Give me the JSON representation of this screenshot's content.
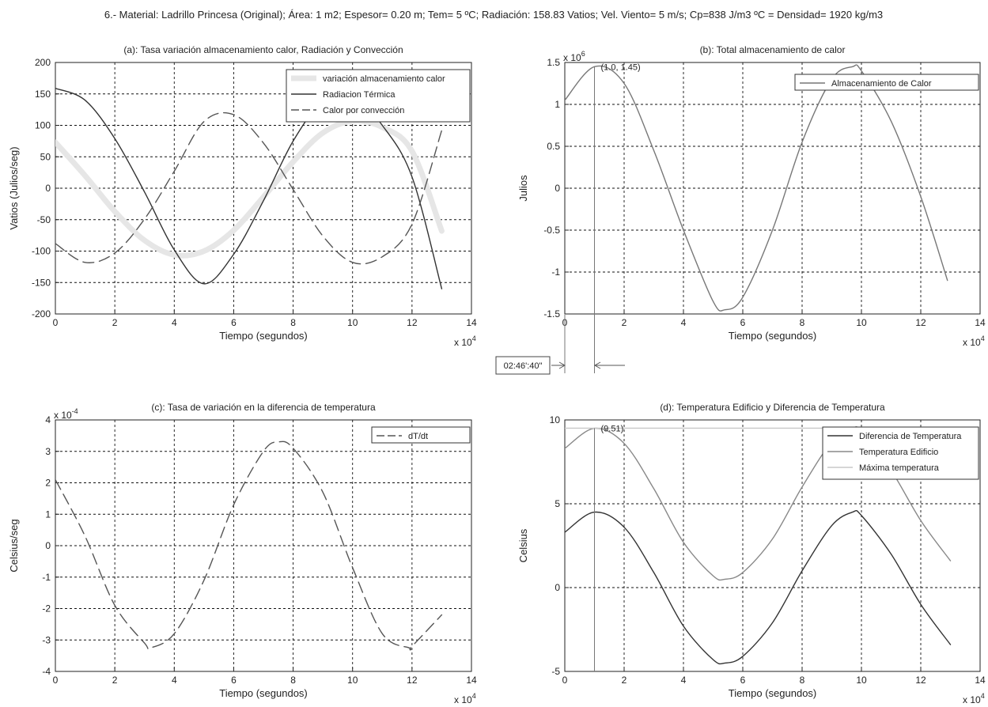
{
  "figure_title": "6.- Material: Ladrillo Princesa (Original); Área: 1 m2; Espesor= 0.20 m; Tem= 5 ºC; Radiación: 158.83 Vatios; Vel. Viento= 5 m/s; Cp=838 J/m3 ºC = Densidad= 1920 kg/m3",
  "annotation_time": "02:46':40\"",
  "chart_data": [
    {
      "id": "a",
      "type": "line",
      "title": "(a): Tasa variación almacenamiento calor, Radiación y Convección",
      "xlabel": "Tiempo (segundos)",
      "ylabel": "Vatios (Julios/seg)",
      "x_multiplier": "x 10^4",
      "xlim": [
        0,
        14
      ],
      "ylim": [
        -200,
        200
      ],
      "xticks": [
        0,
        2,
        4,
        6,
        8,
        10,
        12,
        14
      ],
      "yticks": [
        -200,
        -150,
        -100,
        -50,
        0,
        50,
        100,
        150,
        200
      ],
      "grid": true,
      "legend_position": "top-right",
      "series": [
        {
          "name": "variación almacenamiento calor",
          "color": "#e6e6e6",
          "style": "thick",
          "x": [
            0,
            1,
            2,
            3,
            4,
            5,
            6,
            7,
            8,
            9,
            10,
            11,
            12,
            13
          ],
          "y": [
            73,
            20,
            -37,
            -83,
            -106,
            -100,
            -67,
            -14,
            42,
            88,
            107,
            97,
            59,
            -68
          ]
        },
        {
          "name": "Radiacion Térmica",
          "color": "#333333",
          "style": "solid",
          "x": [
            0,
            1,
            2,
            3,
            4,
            5,
            6,
            7,
            8,
            9,
            10,
            11,
            12,
            13
          ],
          "y": [
            159,
            140,
            79,
            -6,
            -98,
            -152,
            -105,
            -20,
            75,
            138,
            147,
            100,
            18,
            -160
          ]
        },
        {
          "name": "Calor por convección",
          "color": "#555555",
          "style": "dashed",
          "x": [
            0,
            1,
            2,
            3,
            4,
            5,
            6,
            7,
            8,
            9,
            10,
            11,
            12,
            13
          ],
          "y": [
            -88,
            -118,
            -103,
            -49,
            27,
            106,
            117,
            72,
            -2,
            -76,
            -118,
            -109,
            -57,
            92
          ]
        }
      ]
    },
    {
      "id": "b",
      "type": "line",
      "title": "(b): Total almacenamiento de calor",
      "xlabel": "Tiempo (segundos)",
      "ylabel": "Julios",
      "x_multiplier": "x 10^4",
      "y_multiplier": "x 10^6",
      "xlim": [
        0,
        14
      ],
      "ylim": [
        -1.5,
        1.5
      ],
      "xticks": [
        0,
        2,
        4,
        6,
        8,
        10,
        12,
        14
      ],
      "yticks": [
        -1.5,
        -1,
        -0.5,
        0,
        0.5,
        1,
        1.5
      ],
      "grid": true,
      "legend_position": "top-right",
      "annotation": {
        "x": 1.0,
        "y": 1.45,
        "label": "(1.0, 1.45)"
      },
      "series": [
        {
          "name": "Almacenamiento de Calor",
          "color": "#777777",
          "style": "solid",
          "x": [
            0,
            1,
            2,
            3,
            4,
            5,
            5.4,
            6,
            7,
            8,
            9,
            9.7,
            10,
            11,
            12,
            12.9
          ],
          "y": [
            1.05,
            1.45,
            1.25,
            0.45,
            -0.5,
            -1.35,
            -1.45,
            -1.3,
            -0.5,
            0.55,
            1.3,
            1.45,
            1.4,
            0.8,
            -0.1,
            -1.1
          ]
        }
      ]
    },
    {
      "id": "c",
      "type": "line",
      "title": "(c): Tasa de variación en la diferencia de temperatura",
      "xlabel": "Tiempo (segundos)",
      "ylabel": "Celsius/seg",
      "x_multiplier": "x 10^4",
      "y_multiplier": "x 10^-4",
      "xlim": [
        0,
        14
      ],
      "ylim": [
        -4,
        4
      ],
      "xticks": [
        0,
        2,
        4,
        6,
        8,
        10,
        12,
        14
      ],
      "yticks": [
        -4,
        -3,
        -2,
        -1,
        0,
        1,
        2,
        3,
        4
      ],
      "grid": true,
      "legend_position": "top-right",
      "series": [
        {
          "name": "dT/dt",
          "color": "#555555",
          "style": "dashed",
          "x": [
            0,
            1,
            2,
            3,
            3.2,
            4,
            5,
            6,
            7,
            7.5,
            8,
            9,
            10,
            11,
            11.9,
            12,
            13
          ],
          "y": [
            2.1,
            0.3,
            -1.9,
            -3.1,
            -3.25,
            -2.8,
            -1.1,
            1.3,
            3.0,
            3.3,
            3.1,
            1.7,
            -0.7,
            -2.8,
            -3.25,
            -3.2,
            -2.2
          ]
        }
      ]
    },
    {
      "id": "d",
      "type": "line",
      "title": "(d): Temperatura Edificio y Diferencia de Temperatura",
      "xlabel": "Tiempo (segundos)",
      "ylabel": "Celsius",
      "x_multiplier": "x 10^4",
      "xlim": [
        0,
        14
      ],
      "ylim": [
        -5,
        10
      ],
      "xticks": [
        0,
        2,
        4,
        6,
        8,
        10,
        12,
        14
      ],
      "yticks": [
        -5,
        0,
        5,
        10
      ],
      "grid": true,
      "legend_position": "top-right",
      "annotation": {
        "x": 1.0,
        "y": 9.51,
        "label": "(9.51)"
      },
      "series": [
        {
          "name": "Diferencia de Temperatura",
          "color": "#333333",
          "style": "solid",
          "x": [
            0,
            1,
            2,
            3,
            4,
            5,
            5.4,
            6,
            7,
            8,
            9,
            9.7,
            10,
            11,
            12,
            13
          ],
          "y": [
            3.3,
            4.5,
            3.6,
            0.9,
            -2.3,
            -4.3,
            -4.5,
            -4.1,
            -2.1,
            1.0,
            3.7,
            4.5,
            4.3,
            2.0,
            -1.0,
            -3.4
          ]
        },
        {
          "name": "Temperatura Edificio",
          "color": "#888888",
          "style": "solid",
          "x": [
            0,
            1,
            2,
            3,
            4,
            5,
            5.4,
            6,
            7,
            8,
            9,
            9.7,
            10,
            11,
            12,
            13
          ],
          "y": [
            8.3,
            9.5,
            8.6,
            5.9,
            2.7,
            0.7,
            0.5,
            0.9,
            2.9,
            6.0,
            8.7,
            9.5,
            9.3,
            7.0,
            4.0,
            1.6
          ]
        },
        {
          "name": "Máxima temperatura",
          "color": "#c8c8c8",
          "style": "solid",
          "x": [
            0,
            13
          ],
          "y": [
            9.51,
            9.51
          ]
        }
      ]
    }
  ]
}
